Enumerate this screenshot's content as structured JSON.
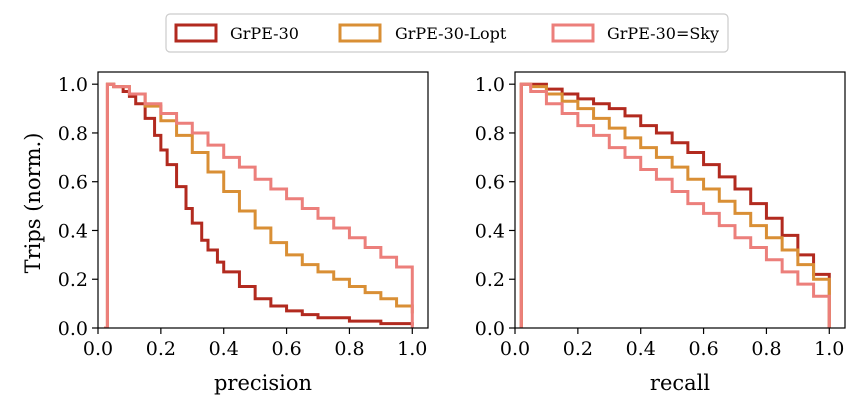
{
  "chart_data": {
    "type": "line",
    "legend": {
      "placement": "top-center",
      "entries": [
        {
          "name": "GrPE-30",
          "color": "#b22a1f"
        },
        {
          "name": "GrPE-30-Lopt",
          "color": "#d98f35"
        },
        {
          "name": "GrPE-30=Sky",
          "color": "#ec7f7b"
        }
      ]
    },
    "ylabel": "Trips (norm.)",
    "ylim": [
      0,
      1.05
    ],
    "yticks": [
      0.0,
      0.2,
      0.4,
      0.6,
      0.8,
      1.0
    ],
    "ytick_labels": [
      "0.0",
      "0.2",
      "0.4",
      "0.6",
      "0.8",
      "1.0"
    ],
    "panels": [
      {
        "xlabel": "precision",
        "xlim": [
          0,
          1.05
        ],
        "xticks": [
          0.0,
          0.2,
          0.4,
          0.6,
          0.8,
          1.0
        ],
        "xtick_labels": [
          "0.0",
          "0.2",
          "0.4",
          "0.6",
          "0.8",
          "1.0"
        ],
        "series": [
          {
            "name": "GrPE-30",
            "color": "#b22a1f",
            "x": [
              0.02,
              0.03,
              0.05,
              0.08,
              0.1,
              0.12,
              0.15,
              0.18,
              0.2,
              0.22,
              0.25,
              0.28,
              0.3,
              0.33,
              0.35,
              0.38,
              0.4,
              0.45,
              0.5,
              0.55,
              0.6,
              0.65,
              0.7,
              0.8,
              0.9,
              1.0
            ],
            "y": [
              0.0,
              1.0,
              0.99,
              0.97,
              0.95,
              0.92,
              0.86,
              0.79,
              0.73,
              0.67,
              0.58,
              0.49,
              0.43,
              0.36,
              0.32,
              0.27,
              0.23,
              0.17,
              0.12,
              0.09,
              0.07,
              0.055,
              0.042,
              0.028,
              0.018,
              0.01
            ]
          },
          {
            "name": "GrPE-30-Lopt",
            "color": "#d98f35",
            "x": [
              0.02,
              0.03,
              0.05,
              0.1,
              0.15,
              0.2,
              0.25,
              0.3,
              0.35,
              0.4,
              0.45,
              0.5,
              0.55,
              0.6,
              0.65,
              0.7,
              0.75,
              0.8,
              0.85,
              0.9,
              0.95,
              1.0
            ],
            "y": [
              0.0,
              1.0,
              0.99,
              0.96,
              0.91,
              0.85,
              0.79,
              0.72,
              0.64,
              0.56,
              0.48,
              0.41,
              0.35,
              0.3,
              0.26,
              0.23,
              0.2,
              0.17,
              0.145,
              0.12,
              0.09,
              0.06
            ]
          },
          {
            "name": "GrPE-30=Sky",
            "color": "#ec7f7b",
            "x": [
              0.02,
              0.03,
              0.05,
              0.1,
              0.15,
              0.2,
              0.25,
              0.3,
              0.35,
              0.4,
              0.45,
              0.5,
              0.55,
              0.6,
              0.65,
              0.7,
              0.75,
              0.8,
              0.85,
              0.9,
              0.95,
              1.0,
              1.0
            ],
            "y": [
              0.0,
              1.0,
              0.99,
              0.96,
              0.92,
              0.88,
              0.84,
              0.8,
              0.75,
              0.7,
              0.66,
              0.61,
              0.57,
              0.53,
              0.49,
              0.45,
              0.41,
              0.37,
              0.33,
              0.29,
              0.25,
              0.19,
              0.0
            ]
          }
        ]
      },
      {
        "xlabel": "recall",
        "xlim": [
          0,
          1.05
        ],
        "xticks": [
          0.0,
          0.2,
          0.4,
          0.6,
          0.8,
          1.0
        ],
        "xtick_labels": [
          "0.0",
          "0.2",
          "0.4",
          "0.6",
          "0.8",
          "1.0"
        ],
        "series": [
          {
            "name": "GrPE-30",
            "color": "#b22a1f",
            "x": [
              0.02,
              0.02,
              0.05,
              0.1,
              0.15,
              0.2,
              0.25,
              0.3,
              0.35,
              0.4,
              0.45,
              0.5,
              0.55,
              0.6,
              0.65,
              0.7,
              0.75,
              0.8,
              0.85,
              0.9,
              0.95,
              1.0,
              1.0
            ],
            "y": [
              0.0,
              1.0,
              1.0,
              0.98,
              0.96,
              0.94,
              0.92,
              0.9,
              0.87,
              0.83,
              0.8,
              0.76,
              0.72,
              0.67,
              0.62,
              0.57,
              0.51,
              0.45,
              0.38,
              0.3,
              0.22,
              0.14,
              0.0
            ]
          },
          {
            "name": "GrPE-30-Lopt",
            "color": "#d98f35",
            "x": [
              0.02,
              0.02,
              0.05,
              0.1,
              0.15,
              0.2,
              0.25,
              0.3,
              0.35,
              0.4,
              0.45,
              0.5,
              0.55,
              0.6,
              0.65,
              0.7,
              0.75,
              0.8,
              0.85,
              0.9,
              0.95,
              1.0,
              1.0
            ],
            "y": [
              0.0,
              1.0,
              0.99,
              0.96,
              0.93,
              0.9,
              0.86,
              0.82,
              0.78,
              0.74,
              0.7,
              0.66,
              0.61,
              0.57,
              0.52,
              0.47,
              0.42,
              0.37,
              0.32,
              0.26,
              0.2,
              0.12,
              0.0
            ]
          },
          {
            "name": "GrPE-30=Sky",
            "color": "#ec7f7b",
            "x": [
              0.02,
              0.02,
              0.05,
              0.1,
              0.15,
              0.2,
              0.25,
              0.3,
              0.35,
              0.4,
              0.45,
              0.5,
              0.55,
              0.6,
              0.65,
              0.7,
              0.75,
              0.8,
              0.85,
              0.9,
              0.95,
              1.0,
              1.0
            ],
            "y": [
              0.0,
              1.0,
              0.97,
              0.92,
              0.88,
              0.83,
              0.79,
              0.74,
              0.7,
              0.65,
              0.61,
              0.56,
              0.51,
              0.47,
              0.42,
              0.37,
              0.33,
              0.28,
              0.23,
              0.18,
              0.13,
              0.08,
              0.0
            ]
          }
        ]
      }
    ]
  }
}
